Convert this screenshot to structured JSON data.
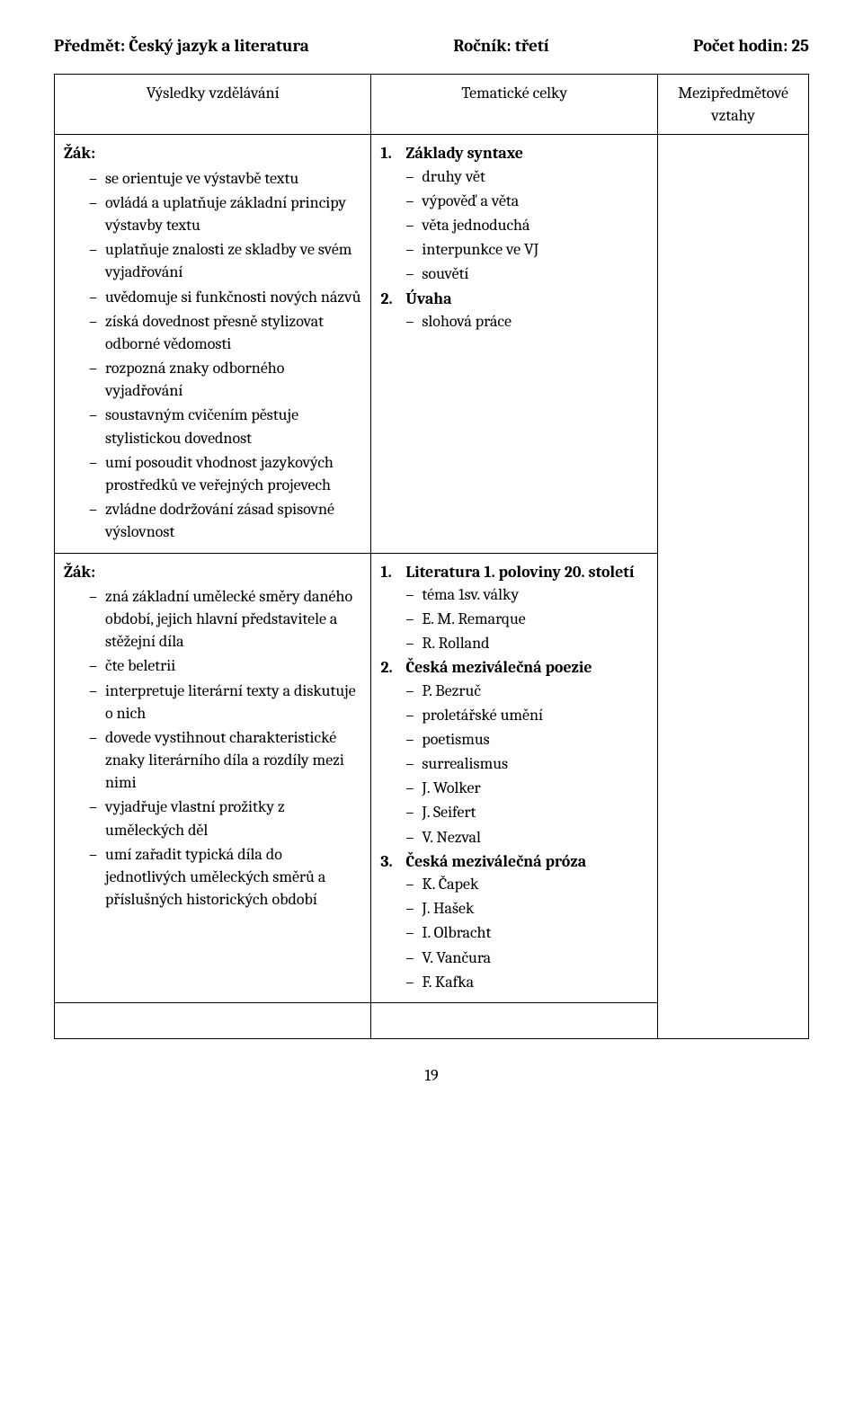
{
  "header": {
    "subject_label": "Předmět:",
    "subject_value": "Český jazyk a literatura",
    "grade_label": "Ročník:",
    "grade_value": "třetí",
    "hours_label": "Počet hodin:",
    "hours_value": "25"
  },
  "columns": {
    "col1": "Výsledky vzdělávání",
    "col2": "Tematické celky",
    "col3_line1": "Mezipředmětové",
    "col3_line2": "vztahy"
  },
  "row1": {
    "zak_label": "Žák:",
    "outcomes": [
      "se orientuje ve výstavbě textu",
      "ovládá a uplatňuje základní principy výstavby textu",
      "uplatňuje znalosti ze skladby ve svém vyjadřování",
      "uvědomuje si funkčnosti nových názvů",
      "získá dovednost přesně stylizovat odborné vědomosti",
      "rozpozná znaky odborného vyjadřování",
      "soustavným cvičením pěstuje stylistickou dovednost",
      "umí posoudit vhodnost jazykových prostředků ve veřejných projevech",
      "zvládne dodržování zásad spisovné výslovnost"
    ],
    "topics": [
      {
        "num": "1.",
        "title": "Základy syntaxe",
        "items": [
          "druhy vět",
          "výpověď a věta",
          "věta jednoduchá",
          "interpunkce ve VJ",
          "souvětí"
        ]
      },
      {
        "num": "2.",
        "title": "Úvaha",
        "items": [
          "slohová práce"
        ]
      }
    ]
  },
  "row2": {
    "zak_label": "Žák:",
    "outcomes": [
      "zná základní umělecké směry daného období, jejich hlavní představitele a stěžejní díla",
      "čte beletrii",
      "interpretuje literární texty a diskutuje o nich",
      "dovede vystihnout charakteristické znaky literárního díla a rozdíly mezi nimi",
      "vyjadřuje vlastní prožitky z uměleckých děl",
      "umí zařadit typická díla do jednotlivých uměleckých směrů a příslušných historických období"
    ],
    "topics": [
      {
        "num": "1.",
        "title": "Literatura 1. poloviny 20. století",
        "items": [
          "téma 1sv. války",
          "E. M. Remarque",
          "R. Rolland"
        ]
      },
      {
        "num": "2.",
        "title": "Česká meziválečná poezie",
        "items": [
          "P. Bezruč",
          "proletářské umění",
          "poetismus",
          "surrealismus",
          "J. Wolker",
          "J. Seifert",
          "V. Nezval"
        ]
      },
      {
        "num": "3.",
        "title": "Česká meziválečná próza",
        "items": [
          "K. Čapek",
          "J. Hašek",
          "I. Olbracht",
          "V. Vančura",
          "F. Kafka"
        ]
      }
    ]
  },
  "page_number": "19"
}
